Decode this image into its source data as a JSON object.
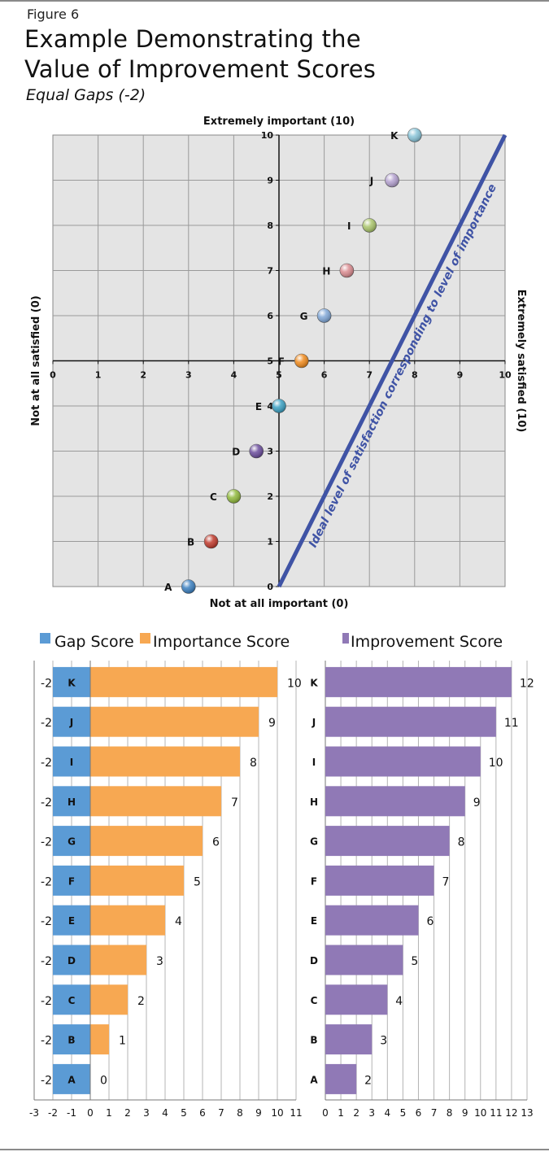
{
  "figure_label": "Figure 6",
  "title_line1": "Example Demonstrating the",
  "title_line2": "Value of Improvement Scores",
  "subtitle": "Equal Gaps (-2)",
  "colors": {
    "gap": "#5b9bd5",
    "importance": "#f7a852",
    "improvement": "#9079b6",
    "ideal_line": "#3f53a5",
    "scatter_bg": "#e4e4e4"
  },
  "chart_data": [
    {
      "type": "scatter",
      "title": "",
      "xlabel": "Not at all important (0)",
      "ylabel": "Not at all satisfied (0)",
      "top_label": "Extremely important (10)",
      "right_label": "Extremely satisfied (10)",
      "x_ticks": [
        "0",
        "1",
        "2",
        "3",
        "4",
        "5",
        "6",
        "7",
        "8",
        "9",
        "10"
      ],
      "y_ticks": [
        "0",
        "1",
        "2",
        "3",
        "4",
        "5",
        "6",
        "7",
        "8",
        "9",
        "10"
      ],
      "xlim": [
        0,
        10
      ],
      "ylim": [
        0,
        10
      ],
      "grid": true,
      "points": [
        {
          "label": "A",
          "satisfaction": 3,
          "importance": 0,
          "color": "#3a7fc0"
        },
        {
          "label": "B",
          "satisfaction": 3.5,
          "importance": 1,
          "color": "#c0392b"
        },
        {
          "label": "C",
          "satisfaction": 4,
          "importance": 2,
          "color": "#8fb83a"
        },
        {
          "label": "D",
          "satisfaction": 4.5,
          "importance": 3,
          "color": "#6a4c9c"
        },
        {
          "label": "E",
          "satisfaction": 5,
          "importance": 4,
          "color": "#3aa0c2"
        },
        {
          "label": "F",
          "satisfaction": 5.5,
          "importance": 5,
          "color": "#f08a1c"
        },
        {
          "label": "G",
          "satisfaction": 6,
          "importance": 6,
          "color": "#7fa6d6"
        },
        {
          "label": "H",
          "satisfaction": 6.5,
          "importance": 7,
          "color": "#d98a8f"
        },
        {
          "label": "I",
          "satisfaction": 7,
          "importance": 8,
          "color": "#a9c46a"
        },
        {
          "label": "J",
          "satisfaction": 7.5,
          "importance": 9,
          "color": "#b3a0cf"
        },
        {
          "label": "K",
          "satisfaction": 8,
          "importance": 10,
          "color": "#88c4d8"
        }
      ],
      "ideal_line": {
        "from": [
          5,
          0
        ],
        "to": [
          10,
          10
        ],
        "label": "Ideal level of satisfaction corresponding to level of importance"
      }
    },
    {
      "type": "bar",
      "orientation": "horizontal",
      "categories": [
        "K",
        "J",
        "I",
        "H",
        "G",
        "F",
        "E",
        "D",
        "C",
        "B",
        "A"
      ],
      "series": [
        {
          "name": "Gap Score",
          "values": [
            -2,
            -2,
            -2,
            -2,
            -2,
            -2,
            -2,
            -2,
            -2,
            -2,
            -2
          ],
          "value_labels": [
            "-2",
            "-2",
            "-2",
            "-2",
            "-2",
            "-2",
            "-2",
            "-2",
            "-2",
            "-2",
            "-2"
          ]
        },
        {
          "name": "Importance Score",
          "values": [
            10,
            9,
            8,
            7,
            6,
            5,
            4,
            3,
            2,
            1,
            0
          ],
          "value_labels": [
            "10",
            "9",
            "8",
            "7",
            "6",
            "5",
            "4",
            "3",
            "2",
            "1",
            "0"
          ]
        }
      ],
      "x_ticks": [
        "-3",
        "-2",
        "-1",
        "0",
        "1",
        "2",
        "3",
        "4",
        "5",
        "6",
        "7",
        "8",
        "9",
        "10",
        "11"
      ],
      "xlim": [
        -3,
        11
      ],
      "legend": "top-left"
    },
    {
      "type": "bar",
      "orientation": "horizontal",
      "categories": [
        "K",
        "J",
        "I",
        "H",
        "G",
        "F",
        "E",
        "D",
        "C",
        "B",
        "A"
      ],
      "series": [
        {
          "name": "Improvement Score",
          "values": [
            12,
            11,
            10,
            9,
            8,
            7,
            6,
            5,
            4,
            3,
            2
          ],
          "value_labels": [
            "12",
            "11",
            "10",
            "9",
            "8",
            "7",
            "6",
            "5",
            "4",
            "3",
            "2"
          ]
        }
      ],
      "x_ticks": [
        "0",
        "1",
        "2",
        "3",
        "4",
        "5",
        "6",
        "7",
        "8",
        "9",
        "10",
        "11",
        "12",
        "13"
      ],
      "xlim": [
        0,
        13
      ],
      "legend": "top"
    }
  ]
}
